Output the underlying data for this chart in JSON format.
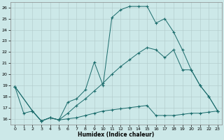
{
  "xlabel": "Humidex (Indice chaleur)",
  "ylabel": "",
  "bg_color": "#cce8e8",
  "grid_color": "#b0c8c8",
  "line_color": "#1a6b6b",
  "xlim": [
    -0.5,
    23.5
  ],
  "ylim": [
    15.5,
    26.5
  ],
  "xticks": [
    0,
    1,
    2,
    3,
    4,
    5,
    6,
    7,
    8,
    9,
    10,
    11,
    12,
    13,
    14,
    15,
    16,
    17,
    18,
    19,
    20,
    21,
    22,
    23
  ],
  "yticks": [
    16,
    17,
    18,
    19,
    20,
    21,
    22,
    23,
    24,
    25,
    26
  ],
  "line1_x": [
    0,
    1,
    2,
    3,
    4,
    5,
    6,
    7,
    8,
    9,
    10,
    11,
    12,
    13,
    14,
    15,
    16,
    17,
    18,
    19,
    20,
    21,
    22,
    23
  ],
  "line1_y": [
    18.9,
    16.5,
    16.7,
    15.8,
    16.1,
    15.9,
    17.5,
    17.8,
    18.6,
    21.1,
    19.0,
    25.1,
    25.8,
    26.1,
    26.1,
    26.1,
    24.6,
    25.0,
    23.8,
    22.2,
    20.4,
    19.0,
    18.0,
    16.7
  ],
  "line2_x": [
    0,
    2,
    3,
    4,
    5,
    6,
    7,
    8,
    9,
    10,
    11,
    12,
    13,
    14,
    15,
    16,
    17,
    18,
    19,
    20,
    21,
    22,
    23
  ],
  "line2_y": [
    18.9,
    16.7,
    15.8,
    16.1,
    15.9,
    16.5,
    17.2,
    17.8,
    18.5,
    19.2,
    20.0,
    20.7,
    21.3,
    21.9,
    22.4,
    22.2,
    21.5,
    22.2,
    20.4,
    20.4,
    19.0,
    18.0,
    16.7
  ],
  "line3_x": [
    0,
    2,
    3,
    4,
    5,
    6,
    7,
    8,
    9,
    10,
    11,
    12,
    13,
    14,
    15,
    16,
    17,
    18,
    19,
    20,
    21,
    22,
    23
  ],
  "line3_y": [
    18.9,
    16.7,
    15.8,
    16.1,
    15.9,
    16.0,
    16.1,
    16.3,
    16.5,
    16.7,
    16.8,
    16.9,
    17.0,
    17.1,
    17.2,
    16.3,
    16.3,
    16.3,
    16.4,
    16.5,
    16.5,
    16.6,
    16.7
  ]
}
